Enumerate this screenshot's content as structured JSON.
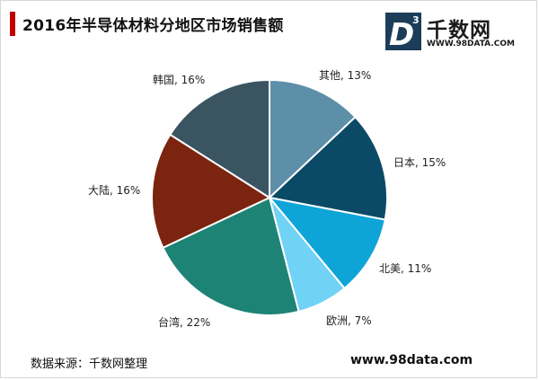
{
  "header": {
    "title": "2016年半导体材料分地区市场销售额",
    "accent_color": "#c00000"
  },
  "logo": {
    "mark_letter": "D",
    "mark_sup": "3",
    "name": "千数网",
    "url": "WWW.98DATA.COM"
  },
  "footer": {
    "source": "数据来源：千数网整理",
    "site": "www.98data.com"
  },
  "chart_data": {
    "type": "pie",
    "title": "2016年半导体材料分地区市场销售额",
    "start_angle_deg": 0,
    "direction": "clockwise",
    "slices": [
      {
        "name": "其他",
        "value": 13,
        "label": "其他, 13%",
        "color": "#5d8fa9"
      },
      {
        "name": "日本",
        "value": 15,
        "label": "日本, 15%",
        "color": "#0b4a66"
      },
      {
        "name": "北美",
        "value": 11,
        "label": "北美, 11%",
        "color": "#0ea4d8"
      },
      {
        "name": "欧洲",
        "value": 7,
        "label": "欧洲, 7%",
        "color": "#70d2f4"
      },
      {
        "name": "台湾",
        "value": 22,
        "label": "台湾, 22%",
        "color": "#1d8375"
      },
      {
        "name": "大陆",
        "value": 16,
        "label": "大陆, 16%",
        "color": "#7b2410"
      },
      {
        "name": "韩国",
        "value": 16,
        "label": "韩国, 16%",
        "color": "#3a5561"
      }
    ]
  }
}
